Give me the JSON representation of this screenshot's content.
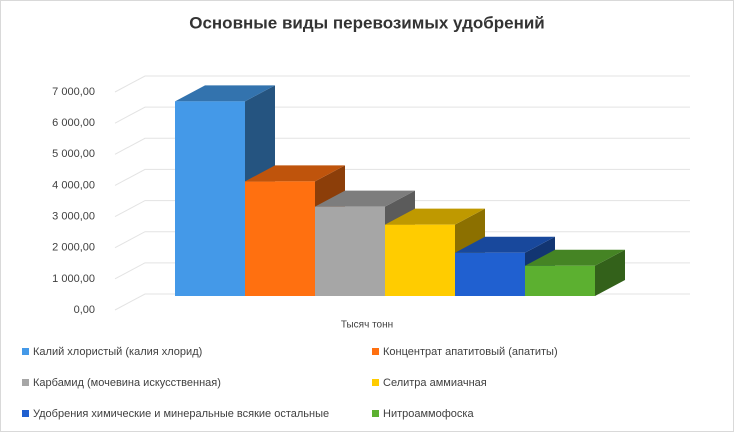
{
  "chart_data": {
    "type": "bar3d",
    "title": "Основные виды перевозимых удобрений",
    "categories": [
      "Тысяч тонн"
    ],
    "series": [
      {
        "name": "Калий хлористый (калия хлорид)",
        "color": "#4499e8",
        "values": [
          6250
        ]
      },
      {
        "name": "Концентрат апатитовый (апатиты)",
        "color": "#ff7010",
        "values": [
          3680
        ]
      },
      {
        "name": "Карбамид (мочевина искусственная)",
        "color": "#a6a6a6",
        "values": [
          2870
        ]
      },
      {
        "name": "Селитра аммиачная",
        "color": "#ffcc00",
        "values": [
          2290
        ]
      },
      {
        "name": "Удобрения химические и минеральные всякие остальные",
        "color": "#2060d0",
        "values": [
          1390
        ]
      },
      {
        "name": "Нитроаммофоска",
        "color": "#5cb030",
        "values": [
          970
        ]
      }
    ],
    "ylim": [
      0,
      7000
    ],
    "yticks": [
      {
        "value": 0,
        "label": "0,00"
      },
      {
        "value": 1000,
        "label": "1 000,00"
      },
      {
        "value": 2000,
        "label": "2 000,00"
      },
      {
        "value": 3000,
        "label": "3 000,00"
      },
      {
        "value": 4000,
        "label": "4 000,00"
      },
      {
        "value": 5000,
        "label": "5 000,00"
      },
      {
        "value": 6000,
        "label": "6 000,00"
      },
      {
        "value": 7000,
        "label": "7 000,00"
      }
    ],
    "grid": true
  }
}
